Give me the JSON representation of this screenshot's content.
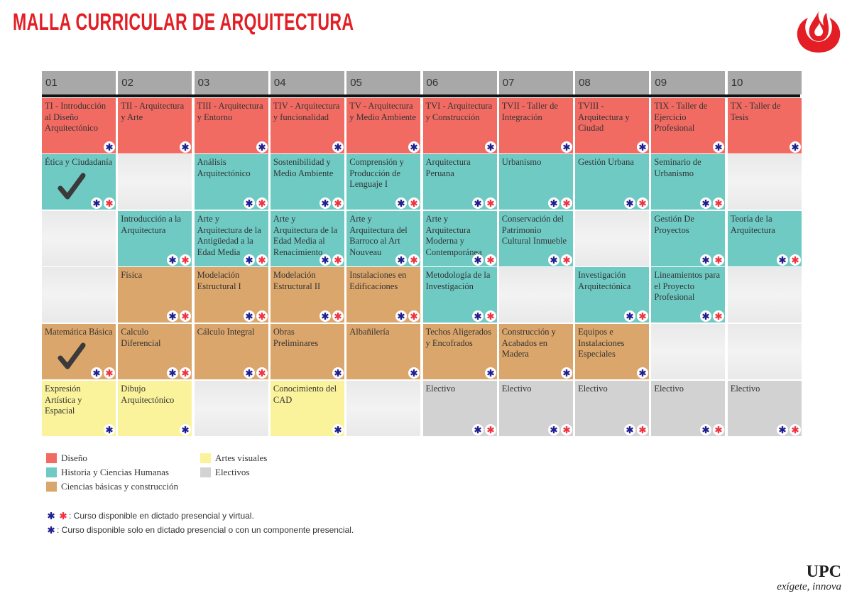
{
  "header": {
    "title": "MALLA CURRICULAR DE ARQUITECTURA"
  },
  "semesters": [
    {
      "label": "01",
      "courses": [
        {
          "text": "TI - Introducción al Diseño Arquitectónico",
          "category": 0,
          "availability": 1
        },
        {
          "text": "Ética y Ciudadanía",
          "category": 1,
          "availability": 0,
          "completed": true
        },
        null,
        null,
        {
          "text": "Matemática Básica",
          "category": 2,
          "availability": 0,
          "completed": true
        },
        {
          "text": "Expresión Artística y Espacial",
          "category": 3,
          "availability": 1
        }
      ]
    },
    {
      "label": "02",
      "courses": [
        {
          "text": "TII - Arquitectura y Arte",
          "category": 0,
          "availability": 1
        },
        null,
        {
          "text": "Introducción a la Arquitectura",
          "category": 1,
          "availability": 0
        },
        {
          "text": "Física",
          "category": 2,
          "availability": 0
        },
        {
          "text": "Calculo Diferencial",
          "category": 2,
          "availability": 0
        },
        {
          "text": "Dibujo Arquitectónico",
          "category": 3,
          "availability": 1
        }
      ]
    },
    {
      "label": "03",
      "courses": [
        {
          "text": "TIII - Arquitectura y Entorno",
          "category": 0,
          "availability": 1
        },
        {
          "text": "Análisis Arquitectónico",
          "category": 1,
          "availability": 0
        },
        {
          "text": "Arte y Arquitectura de la Antigüedad a la Edad Media",
          "category": 1,
          "availability": 0
        },
        {
          "text": "Modelación Estructural I",
          "category": 2,
          "availability": 0
        },
        {
          "text": "Cálculo Integral",
          "category": 2,
          "availability": 0
        },
        null
      ]
    },
    {
      "label": "04",
      "courses": [
        {
          "text": "TIV - Arquitectura y funcionalidad",
          "category": 0,
          "availability": 1
        },
        {
          "text": "Sostenibilidad y Medio Ambiente",
          "category": 1,
          "availability": 0
        },
        {
          "text": "Arte y Arquitectura de la Edad Media al Renacimiento",
          "category": 1,
          "availability": 0
        },
        {
          "text": "Modelación Estructural II",
          "category": 2,
          "availability": 0
        },
        {
          "text": "Obras Preliminares",
          "category": 2,
          "availability": 1
        },
        {
          "text": "Conocimiento del CAD",
          "category": 3,
          "availability": 1
        }
      ]
    },
    {
      "label": "05",
      "courses": [
        {
          "text": "TV - Arquitectura y Medio Ambiente",
          "category": 0,
          "availability": 1
        },
        {
          "text": "Comprensión y Producción de Lenguaje I",
          "category": 1,
          "availability": 0
        },
        {
          "text": "Arte y Arquitectura del Barroco al Art Nouveau",
          "category": 1,
          "availability": 0
        },
        {
          "text": "Instalaciones en Edificaciones",
          "category": 2,
          "availability": 0
        },
        {
          "text": "Albañilería",
          "category": 2,
          "availability": 1
        },
        null
      ]
    },
    {
      "label": "06",
      "courses": [
        {
          "text": "TVI - Arquitectura y Construcción",
          "category": 0,
          "availability": 1
        },
        {
          "text": "Arquitectura Peruana",
          "category": 1,
          "availability": 0
        },
        {
          "text": "Arte y Arquitectura Moderna y Contemporánea",
          "category": 1,
          "availability": 0
        },
        {
          "text": "Metodología de la Investigación",
          "category": 1,
          "availability": 0
        },
        {
          "text": "Techos Aligerados y Encofrados",
          "category": 2,
          "availability": 1
        },
        {
          "text": "Electivo",
          "category": 4,
          "availability": 0
        }
      ]
    },
    {
      "label": "07",
      "courses": [
        {
          "text": "TVII - Taller de Integración",
          "category": 0,
          "availability": 1
        },
        {
          "text": "Urbanismo",
          "category": 1,
          "availability": 0
        },
        {
          "text": "Conservación del Patrimonio Cultural Inmueble",
          "category": 1,
          "availability": 0
        },
        null,
        {
          "text": "Construcción y Acabados en Madera",
          "category": 2,
          "availability": 1
        },
        {
          "text": "Electivo",
          "category": 4,
          "availability": 0
        }
      ]
    },
    {
      "label": "08",
      "courses": [
        {
          "text": "TVIII - Arquitectura y Ciudad",
          "category": 0,
          "availability": 1
        },
        {
          "text": "Gestión Urbana",
          "category": 1,
          "availability": 0
        },
        null,
        {
          "text": "Investigación Arquitectónica",
          "category": 1,
          "availability": 0
        },
        {
          "text": "Equipos e Instalaciones Especiales",
          "category": 2,
          "availability": 1
        },
        {
          "text": "Electivo",
          "category": 4,
          "availability": 0
        }
      ]
    },
    {
      "label": "09",
      "courses": [
        {
          "text": "TIX - Taller de Ejercicio Profesional",
          "category": 0,
          "availability": 1
        },
        {
          "text": "Seminario de Urbanismo",
          "category": 1,
          "availability": 0
        },
        {
          "text": "Gestión De Proyectos",
          "category": 1,
          "availability": 0
        },
        {
          "text": "Lineamientos para el Proyecto Profesional",
          "category": 1,
          "availability": 0
        },
        null,
        {
          "text": "Electivo",
          "category": 4,
          "availability": 0
        }
      ]
    },
    {
      "label": "10",
      "courses": [
        {
          "text": "TX - Taller de Tesis",
          "category": 0,
          "availability": 1
        },
        null,
        {
          "text": "Teoría de la Arquitectura",
          "category": 1,
          "availability": 0
        },
        null,
        null,
        {
          "text": "Electivo",
          "category": 4,
          "availability": 0
        }
      ]
    }
  ],
  "legend": [
    {
      "label": "Diseño",
      "color": "#f26b63"
    },
    {
      "label": "Historia y Ciencias Humanas",
      "color": "#6fcac4"
    },
    {
      "label": "Ciencias básicas y construcción",
      "color": "#dba66b"
    },
    {
      "label": "Artes visuales",
      "color": "#fbf39b"
    },
    {
      "label": "Electivos",
      "color": "#d2d2d2"
    }
  ],
  "notes": [
    {
      "text": ": Curso disponible en dictado presencial y virtual."
    },
    {
      "text": ": Curso disponible solo en dictado presencial o con un componente presencial."
    }
  ],
  "footer": {
    "brand": "UPC",
    "slogan": "exígete, innova"
  }
}
